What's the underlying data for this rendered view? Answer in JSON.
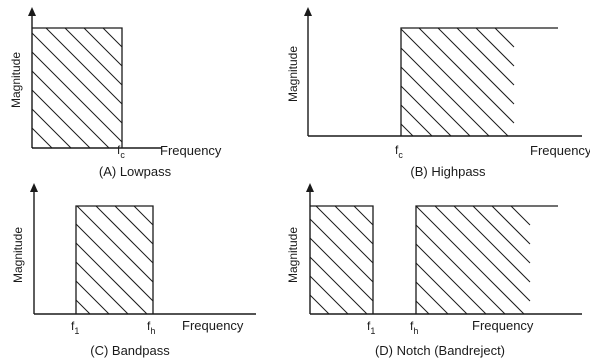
{
  "panels": [
    {
      "caption": "(A) Lowpass",
      "ylabel": "Magnitude",
      "xlabel": "Frequency",
      "marker1": {
        "base": "f",
        "sub": "c"
      },
      "marker2": null
    },
    {
      "caption": "(B) Highpass",
      "ylabel": "Magnitude",
      "xlabel": "Frequency",
      "marker1": {
        "base": "f",
        "sub": "c"
      },
      "marker2": null
    },
    {
      "caption": "(C) Bandpass",
      "ylabel": "Magnitude",
      "xlabel": "Frequency",
      "marker1": {
        "base": "f",
        "sub": "1"
      },
      "marker2": {
        "base": "f",
        "sub": "h"
      }
    },
    {
      "caption": "(D) Notch (Bandreject)",
      "ylabel": "Magnitude",
      "xlabel": "Frequency",
      "marker1": {
        "base": "f",
        "sub": "1"
      },
      "marker2": {
        "base": "f",
        "sub": "h"
      }
    }
  ],
  "colors": {
    "ink": "#1a1a1a",
    "background": "#ffffff"
  }
}
